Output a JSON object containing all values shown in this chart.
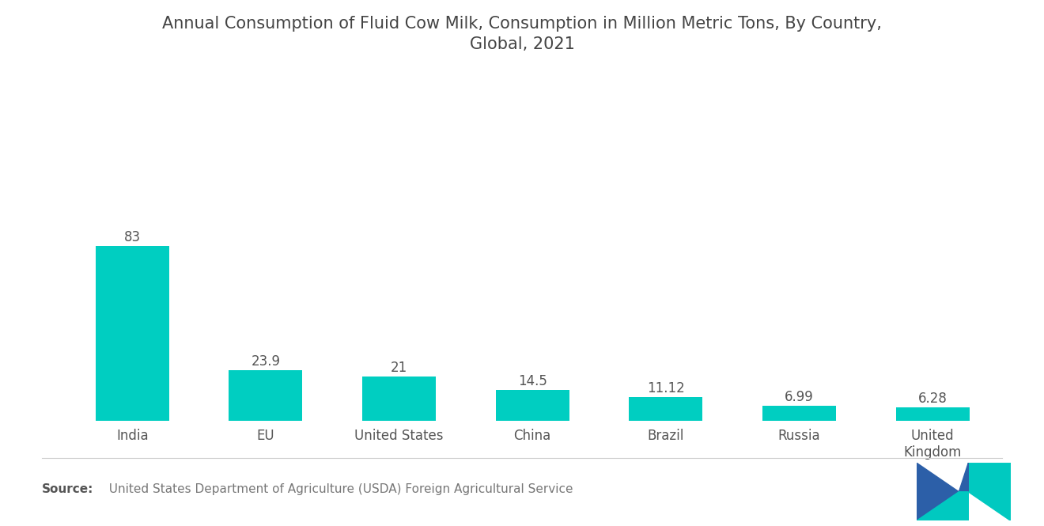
{
  "title": "Annual Consumption of Fluid Cow Milk, Consumption in Million Metric Tons, By Country,\nGlobal, 2021",
  "categories": [
    "India",
    "EU",
    "United States",
    "China",
    "Brazil",
    "Russia",
    "United\nKingdom"
  ],
  "values": [
    83,
    23.9,
    21,
    14.5,
    11.12,
    6.99,
    6.28
  ],
  "value_labels": [
    "83",
    "23.9",
    "21",
    "14.5",
    "11.12",
    "6.99",
    "6.28"
  ],
  "bar_color": "#00CEC1",
  "background_color": "#FFFFFF",
  "title_fontsize": 15,
  "label_fontsize": 12,
  "value_fontsize": 12,
  "source_bold": "Source:",
  "source_text": "  United States Department of Agriculture (USDA) Foreign Agricultural Service",
  "source_fontsize": 11,
  "ylim": [
    0,
    130
  ],
  "logo_teal": "#00C9C0",
  "logo_blue": "#2C5FA8"
}
